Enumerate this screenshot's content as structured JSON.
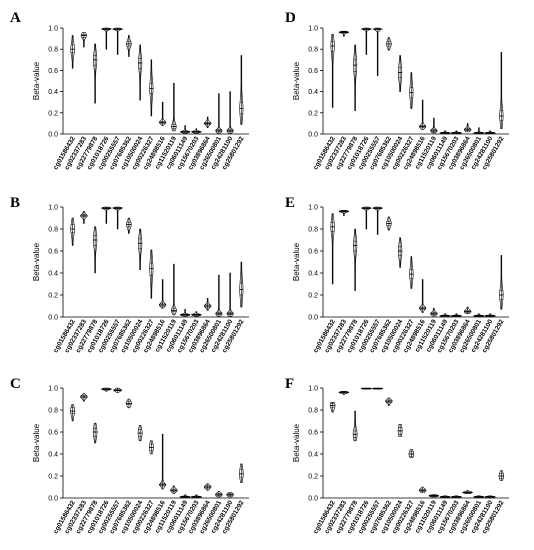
{
  "chart_data": [
    {
      "type": "violin",
      "panel": "A",
      "ylabel": "Beta-value",
      "ylim": [
        0,
        1.0
      ],
      "yticks": [
        "0.0",
        "0.2",
        "0.4",
        "0.6",
        "0.8",
        "1.0"
      ],
      "categories": [
        "cg01586432",
        "cg02337283",
        "cg22779878",
        "cg01018726",
        "cg00255557",
        "cg07685362",
        "cg10500024",
        "cg00226327",
        "cg24898516",
        "cg11520119",
        "cg06011149",
        "cg15670203",
        "cg03896864",
        "cg26500801",
        "cg24281100",
        "cg25801292"
      ],
      "series": [
        {
          "median": [
            0.8,
            0.93,
            0.7,
            0.99,
            0.99,
            0.85,
            0.67,
            0.43,
            0.11,
            0.07,
            0.02,
            0.02,
            0.1,
            0.03,
            0.03,
            0.24
          ],
          "q1": [
            0.77,
            0.91,
            0.65,
            0.985,
            0.985,
            0.83,
            0.62,
            0.38,
            0.1,
            0.05,
            0.015,
            0.015,
            0.09,
            0.02,
            0.02,
            0.19
          ],
          "q3": [
            0.84,
            0.94,
            0.74,
            0.995,
            0.995,
            0.87,
            0.71,
            0.48,
            0.12,
            0.09,
            0.025,
            0.025,
            0.11,
            0.04,
            0.04,
            0.3
          ],
          "min": [
            0.62,
            0.82,
            0.29,
            0.8,
            0.75,
            0.73,
            0.32,
            0.17,
            0.08,
            0.03,
            0.005,
            0.005,
            0.06,
            0.005,
            0.005,
            0.09
          ],
          "max": [
            0.93,
            0.96,
            0.85,
            1.0,
            1.0,
            0.93,
            0.84,
            0.7,
            0.3,
            0.48,
            0.08,
            0.05,
            0.16,
            0.38,
            0.4,
            0.74
          ]
        }
      ]
    },
    {
      "type": "violin",
      "panel": "B",
      "ylabel": "Beta-value",
      "ylim": [
        0,
        1.0
      ],
      "yticks": [
        "0.0",
        "0.2",
        "0.4",
        "0.6",
        "0.8",
        "1.0"
      ],
      "categories": [
        "cg01586432",
        "cg02337283",
        "cg22779878",
        "cg01018726",
        "cg00255557",
        "cg07685362",
        "cg10500024",
        "cg00226327",
        "cg24898516",
        "cg11520119",
        "cg06011149",
        "cg15670203",
        "cg03896864",
        "cg26500801",
        "cg24281100",
        "cg25801292"
      ],
      "series": [
        {
          "median": [
            0.8,
            0.92,
            0.7,
            0.99,
            0.99,
            0.84,
            0.67,
            0.44,
            0.11,
            0.06,
            0.02,
            0.02,
            0.1,
            0.03,
            0.03,
            0.25
          ],
          "q1": [
            0.77,
            0.91,
            0.65,
            0.985,
            0.985,
            0.82,
            0.62,
            0.38,
            0.1,
            0.05,
            0.015,
            0.015,
            0.09,
            0.02,
            0.02,
            0.2
          ],
          "q3": [
            0.84,
            0.93,
            0.74,
            0.995,
            0.995,
            0.86,
            0.71,
            0.49,
            0.12,
            0.08,
            0.025,
            0.025,
            0.11,
            0.04,
            0.04,
            0.31
          ],
          "min": [
            0.65,
            0.85,
            0.4,
            0.85,
            0.8,
            0.76,
            0.43,
            0.17,
            0.08,
            0.02,
            0.005,
            0.005,
            0.06,
            0.005,
            0.005,
            0.09
          ],
          "max": [
            0.9,
            0.96,
            0.82,
            1.0,
            1.0,
            0.9,
            0.8,
            0.61,
            0.34,
            0.48,
            0.07,
            0.05,
            0.17,
            0.38,
            0.4,
            0.5
          ]
        }
      ]
    },
    {
      "type": "violin",
      "panel": "C",
      "ylabel": "Beta-value",
      "ylim": [
        0,
        1.0
      ],
      "yticks": [
        "0.0",
        "0.2",
        "0.4",
        "0.6",
        "0.8",
        "1.0"
      ],
      "categories": [
        "cg01586432",
        "cg02337283",
        "cg22779878",
        "cg01018726",
        "cg00255557",
        "cg07685362",
        "cg10500024",
        "cg00226327",
        "cg24898516",
        "cg11520119",
        "cg06011149",
        "cg15670203",
        "cg03896864",
        "cg26500801",
        "cg24281100",
        "cg25801292"
      ],
      "series": [
        {
          "median": [
            0.79,
            0.92,
            0.6,
            0.99,
            0.98,
            0.86,
            0.59,
            0.46,
            0.12,
            0.07,
            0.01,
            0.01,
            0.1,
            0.03,
            0.03,
            0.22
          ],
          "q1": [
            0.77,
            0.91,
            0.56,
            0.985,
            0.975,
            0.85,
            0.56,
            0.43,
            0.11,
            0.06,
            0.008,
            0.008,
            0.09,
            0.02,
            0.02,
            0.19
          ],
          "q3": [
            0.82,
            0.93,
            0.63,
            0.995,
            0.99,
            0.88,
            0.62,
            0.49,
            0.13,
            0.08,
            0.015,
            0.015,
            0.11,
            0.04,
            0.04,
            0.26
          ],
          "min": [
            0.7,
            0.88,
            0.5,
            0.97,
            0.96,
            0.82,
            0.52,
            0.4,
            0.08,
            0.04,
            0.005,
            0.005,
            0.07,
            0.01,
            0.01,
            0.14
          ],
          "max": [
            0.85,
            0.95,
            0.68,
            1.0,
            1.0,
            0.9,
            0.66,
            0.52,
            0.58,
            0.11,
            0.03,
            0.03,
            0.13,
            0.06,
            0.05,
            0.31
          ]
        }
      ]
    },
    {
      "type": "violin",
      "panel": "D",
      "ylabel": "Beta-value",
      "ylim": [
        0,
        1.0
      ],
      "yticks": [
        "0.0",
        "0.2",
        "0.4",
        "0.6",
        "0.8",
        "1.0"
      ],
      "categories": [
        "cg01586432",
        "cg02337283",
        "cg22779878",
        "cg01018726",
        "cg00255557",
        "cg07685362",
        "cg10500024",
        "cg00226327",
        "cg24898516",
        "cg11520119",
        "cg06011149",
        "cg15670203",
        "cg03896864",
        "cg26500801",
        "cg24281100",
        "cg25801292"
      ],
      "series": [
        {
          "median": [
            0.83,
            0.96,
            0.65,
            0.99,
            0.99,
            0.85,
            0.58,
            0.39,
            0.07,
            0.03,
            0.01,
            0.01,
            0.04,
            0.01,
            0.01,
            0.17
          ],
          "q1": [
            0.78,
            0.955,
            0.59,
            0.985,
            0.985,
            0.83,
            0.53,
            0.34,
            0.06,
            0.02,
            0.008,
            0.008,
            0.03,
            0.008,
            0.008,
            0.13
          ],
          "q3": [
            0.87,
            0.965,
            0.7,
            0.995,
            0.995,
            0.87,
            0.63,
            0.44,
            0.08,
            0.04,
            0.015,
            0.015,
            0.05,
            0.015,
            0.015,
            0.22
          ],
          "min": [
            0.25,
            0.92,
            0.22,
            0.75,
            0.55,
            0.79,
            0.4,
            0.24,
            0.04,
            0.01,
            0.005,
            0.005,
            0.02,
            0.005,
            0.005,
            0.05
          ],
          "max": [
            0.94,
            0.97,
            0.84,
            1.0,
            1.0,
            0.91,
            0.74,
            0.58,
            0.32,
            0.15,
            0.03,
            0.03,
            0.1,
            0.06,
            0.03,
            0.77
          ]
        }
      ]
    },
    {
      "type": "violin",
      "panel": "E",
      "ylabel": "Beta-value",
      "ylim": [
        0,
        1.0
      ],
      "yticks": [
        "0.0",
        "0.2",
        "0.4",
        "0.6",
        "0.8",
        "1.0"
      ],
      "categories": [
        "cg01586432",
        "cg02337283",
        "cg22779878",
        "cg01018726",
        "cg00255557",
        "cg07685362",
        "cg10500024",
        "cg00226327",
        "cg24898516",
        "cg11520119",
        "cg06011149",
        "cg15670203",
        "cg03896864",
        "cg26500801",
        "cg24281100",
        "cg25801292"
      ],
      "series": [
        {
          "median": [
            0.82,
            0.96,
            0.65,
            0.99,
            0.99,
            0.85,
            0.6,
            0.39,
            0.08,
            0.03,
            0.01,
            0.01,
            0.05,
            0.01,
            0.01,
            0.2
          ],
          "q1": [
            0.78,
            0.955,
            0.6,
            0.985,
            0.985,
            0.83,
            0.56,
            0.35,
            0.07,
            0.02,
            0.008,
            0.008,
            0.04,
            0.008,
            0.008,
            0.16
          ],
          "q3": [
            0.86,
            0.965,
            0.69,
            0.995,
            0.995,
            0.87,
            0.64,
            0.43,
            0.09,
            0.04,
            0.015,
            0.015,
            0.06,
            0.015,
            0.015,
            0.24
          ],
          "min": [
            0.3,
            0.92,
            0.24,
            0.8,
            0.75,
            0.79,
            0.45,
            0.26,
            0.04,
            0.01,
            0.005,
            0.005,
            0.03,
            0.005,
            0.005,
            0.07
          ],
          "max": [
            0.94,
            0.97,
            0.8,
            1.0,
            1.0,
            0.91,
            0.72,
            0.55,
            0.34,
            0.08,
            0.03,
            0.03,
            0.09,
            0.03,
            0.03,
            0.56
          ]
        }
      ]
    },
    {
      "type": "violin",
      "panel": "F",
      "ylabel": "Beta-value",
      "ylim": [
        0,
        1.0
      ],
      "yticks": [
        "0.0",
        "0.2",
        "0.4",
        "0.6",
        "0.8",
        "1.0"
      ],
      "categories": [
        "cg01586432",
        "cg02337283",
        "cg22779878",
        "cg01018726",
        "cg00255557",
        "cg07685362",
        "cg10500024",
        "cg00226327",
        "cg24898516",
        "cg11520119",
        "cg06011149",
        "cg15670203",
        "cg03896864",
        "cg26500801",
        "cg24281100",
        "cg25801292"
      ],
      "series": [
        {
          "median": [
            0.84,
            0.96,
            0.58,
            0.995,
            0.995,
            0.88,
            0.61,
            0.4,
            0.07,
            0.02,
            0.01,
            0.01,
            0.05,
            0.01,
            0.01,
            0.2
          ],
          "q1": [
            0.82,
            0.955,
            0.55,
            0.99,
            0.99,
            0.87,
            0.58,
            0.38,
            0.06,
            0.015,
            0.008,
            0.008,
            0.045,
            0.008,
            0.008,
            0.18
          ],
          "q3": [
            0.86,
            0.965,
            0.61,
            0.998,
            0.998,
            0.89,
            0.64,
            0.42,
            0.08,
            0.025,
            0.015,
            0.015,
            0.055,
            0.015,
            0.015,
            0.22
          ],
          "min": [
            0.78,
            0.94,
            0.52,
            0.99,
            0.99,
            0.84,
            0.56,
            0.37,
            0.05,
            0.01,
            0.005,
            0.005,
            0.04,
            0.005,
            0.005,
            0.16
          ],
          "max": [
            0.87,
            0.97,
            0.79,
            1.0,
            1.0,
            0.91,
            0.67,
            0.44,
            0.1,
            0.03,
            0.02,
            0.02,
            0.07,
            0.02,
            0.02,
            0.25
          ]
        }
      ]
    }
  ]
}
